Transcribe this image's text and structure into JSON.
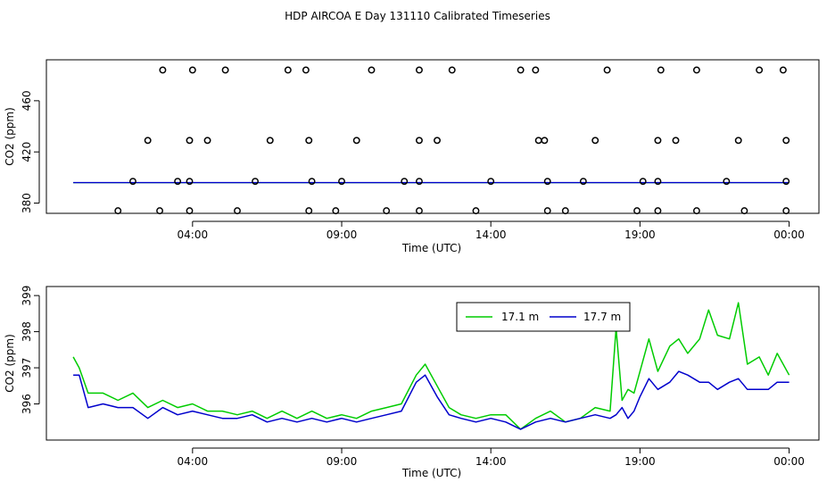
{
  "page_title": "HDP AIRCOA E  Day 131110  Calibrated Timeseries",
  "colors": {
    "green": "#00cc00",
    "blue": "#0000cc",
    "points": "#000000"
  },
  "chart_data": [
    {
      "type": "scatter",
      "xlabel": "Time (UTC)",
      "ylabel": "CO2 (ppm)",
      "x_ticks": [
        "04:00",
        "09:00",
        "14:00",
        "19:00",
        "00:00"
      ],
      "x_tick_hours": [
        4,
        9,
        14,
        19,
        24
      ],
      "xlim_hours": [
        -0.9,
        25.0
      ],
      "y_ticks": [
        "380",
        "420",
        "460"
      ],
      "y_tick_values": [
        380,
        420,
        460
      ],
      "ylim": [
        372,
        492
      ],
      "series": [
        {
          "values_x_hours": [
            1.5,
            2.9,
            3.9,
            5.5,
            7.9,
            8.8,
            10.5,
            11.6,
            13.5,
            15.9,
            16.5,
            18.9,
            19.6,
            20.9,
            22.5,
            23.9
          ],
          "values_y": [
            374,
            374,
            374,
            374,
            374,
            374,
            374,
            374,
            374,
            374,
            374,
            374,
            374,
            374,
            374,
            374
          ]
        },
        {
          "values_x_hours": [
            2.0,
            3.5,
            3.9,
            6.1,
            8.0,
            9.0,
            11.1,
            11.6,
            14.0,
            15.9,
            17.1,
            19.1,
            19.6,
            21.9,
            23.9
          ],
          "values_y": [
            397,
            397,
            397,
            397,
            397,
            397,
            397,
            397,
            397,
            397,
            397,
            397,
            397,
            397,
            397
          ]
        },
        {
          "values_x_hours": [
            2.5,
            3.9,
            4.5,
            6.6,
            7.9,
            9.5,
            11.6,
            12.2,
            15.6,
            15.8,
            17.5,
            19.6,
            20.2,
            22.3,
            23.9
          ],
          "values_y": [
            429,
            429,
            429,
            429,
            429,
            429,
            429,
            429,
            429,
            429,
            429,
            429,
            429,
            429,
            429
          ]
        },
        {
          "values_x_hours": [
            3.0,
            4.0,
            5.1,
            7.2,
            7.8,
            10.0,
            11.6,
            12.7,
            15.0,
            15.5,
            17.9,
            19.7,
            20.9,
            23.0,
            23.8
          ],
          "values_y": [
            484,
            484,
            484,
            484,
            484,
            484,
            484,
            484,
            484,
            484,
            484,
            484,
            484,
            484,
            484
          ]
        }
      ],
      "mean_line_y": 396
    },
    {
      "type": "line",
      "xlabel": "Time (UTC)",
      "ylabel": "CO2 (ppm)",
      "x_ticks": [
        "04:00",
        "09:00",
        "14:00",
        "19:00",
        "00:00"
      ],
      "x_tick_hours": [
        4,
        9,
        14,
        19,
        24
      ],
      "xlim_hours": [
        -0.9,
        25.0
      ],
      "y_ticks": [
        "396",
        "397",
        "398",
        "399"
      ],
      "y_tick_values": [
        396,
        397,
        398,
        399
      ],
      "ylim": [
        395.0,
        399.25
      ],
      "legend_position": "top-center",
      "series": [
        {
          "name": "17.1 m",
          "x_hours": [
            0,
            0.2,
            0.5,
            1,
            1.5,
            2,
            2.5,
            3,
            3.5,
            4,
            4.5,
            5,
            5.5,
            6,
            6.5,
            7,
            7.5,
            8,
            8.5,
            9,
            9.5,
            10,
            10.5,
            11,
            11.5,
            11.8,
            12.2,
            12.6,
            13,
            13.5,
            14,
            14.5,
            15,
            15.5,
            16,
            16.5,
            17,
            17.5,
            18,
            18.2,
            18.4,
            18.6,
            18.8,
            19,
            19.3,
            19.6,
            20,
            20.3,
            20.6,
            21,
            21.3,
            21.6,
            22,
            22.3,
            22.6,
            23,
            23.3,
            23.6,
            24
          ],
          "values": [
            397.3,
            397.0,
            396.3,
            396.3,
            396.1,
            396.3,
            395.9,
            396.1,
            395.9,
            396.0,
            395.8,
            395.8,
            395.7,
            395.8,
            395.6,
            395.8,
            395.6,
            395.8,
            395.6,
            395.7,
            395.6,
            395.8,
            395.9,
            396.0,
            396.8,
            397.1,
            396.5,
            395.9,
            395.7,
            395.6,
            395.7,
            395.7,
            395.3,
            395.6,
            395.8,
            395.5,
            395.6,
            395.9,
            395.8,
            398.1,
            396.1,
            396.4,
            396.3,
            396.9,
            397.8,
            396.9,
            397.6,
            397.8,
            397.4,
            397.8,
            398.6,
            397.9,
            397.8,
            398.8,
            397.1,
            397.3,
            396.8,
            397.4,
            396.8
          ]
        },
        {
          "name": "17.7 m",
          "x_hours": [
            0,
            0.2,
            0.5,
            1,
            1.5,
            2,
            2.5,
            3,
            3.5,
            4,
            4.5,
            5,
            5.5,
            6,
            6.5,
            7,
            7.5,
            8,
            8.5,
            9,
            9.5,
            10,
            10.5,
            11,
            11.5,
            11.8,
            12.2,
            12.6,
            13,
            13.5,
            14,
            14.5,
            15,
            15.5,
            16,
            16.5,
            17,
            17.5,
            18,
            18.2,
            18.4,
            18.6,
            18.8,
            19,
            19.3,
            19.6,
            20,
            20.3,
            20.6,
            21,
            21.3,
            21.6,
            22,
            22.3,
            22.6,
            23,
            23.3,
            23.6,
            24
          ],
          "values": [
            396.8,
            396.8,
            395.9,
            396.0,
            395.9,
            395.9,
            395.6,
            395.9,
            395.7,
            395.8,
            395.7,
            395.6,
            395.6,
            395.7,
            395.5,
            395.6,
            395.5,
            395.6,
            395.5,
            395.6,
            395.5,
            395.6,
            395.7,
            395.8,
            396.6,
            396.8,
            396.2,
            395.7,
            395.6,
            395.5,
            395.6,
            395.5,
            395.3,
            395.5,
            395.6,
            395.5,
            395.6,
            395.7,
            395.6,
            395.7,
            395.9,
            395.6,
            395.8,
            396.2,
            396.7,
            396.4,
            396.6,
            396.9,
            396.8,
            396.6,
            396.6,
            396.4,
            396.6,
            396.7,
            396.4,
            396.4,
            396.4,
            396.6,
            396.6
          ]
        }
      ]
    }
  ]
}
